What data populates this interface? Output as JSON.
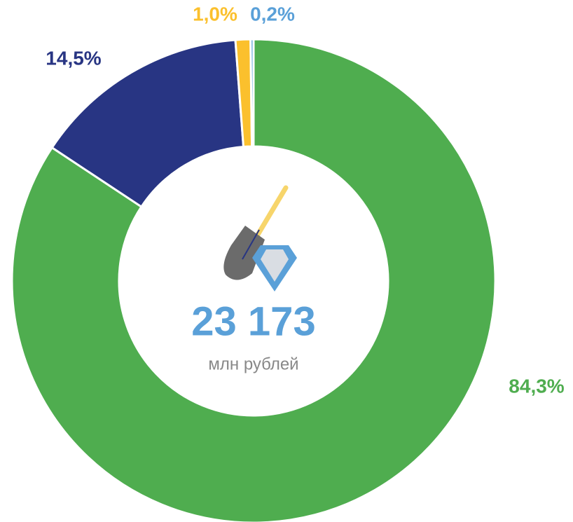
{
  "chart_data": {
    "type": "donut",
    "center_value": "23 173",
    "center_label": "млн рублей",
    "values": [
      84.3,
      14.5,
      1.0,
      0.2
    ],
    "value_labels": [
      "84,3%",
      "14,5%",
      "1,0%",
      "0,2%"
    ],
    "colors": [
      "#4fad4f",
      "#283583",
      "#fbc02d",
      "#5aa0d8"
    ]
  }
}
